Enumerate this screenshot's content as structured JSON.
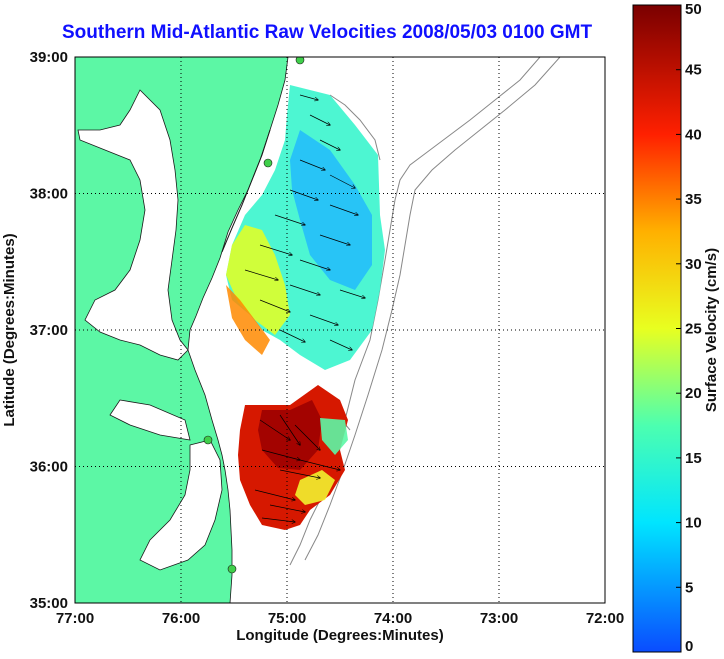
{
  "chart_data": {
    "type": "map",
    "title": "Southern Mid-Atlantic Raw Velocities 2008/05/03 0100 GMT",
    "xlabel": "Longitude (Degrees:Minutes)",
    "ylabel": "Latitude (Degrees:Minutes)",
    "x_ticks": [
      "77:00",
      "76:00",
      "75:00",
      "74:00",
      "73:00",
      "72:00"
    ],
    "y_ticks": [
      "39:00",
      "38:00",
      "37:00",
      "36:00",
      "35:00"
    ],
    "xlim": [
      -77,
      -72
    ],
    "ylim": [
      35,
      39
    ],
    "grid": true,
    "colorbar": {
      "label": "Surface Velocity (cm/s)",
      "ticks": [
        "0",
        "5",
        "10",
        "15",
        "20",
        "25",
        "30",
        "35",
        "40",
        "45",
        "50"
      ],
      "range": [
        0,
        50
      ]
    },
    "colors": {
      "land": "#5cf7a5",
      "water": "#ffffff",
      "title": "#1010ff",
      "station": "#3fcf4a"
    }
  }
}
